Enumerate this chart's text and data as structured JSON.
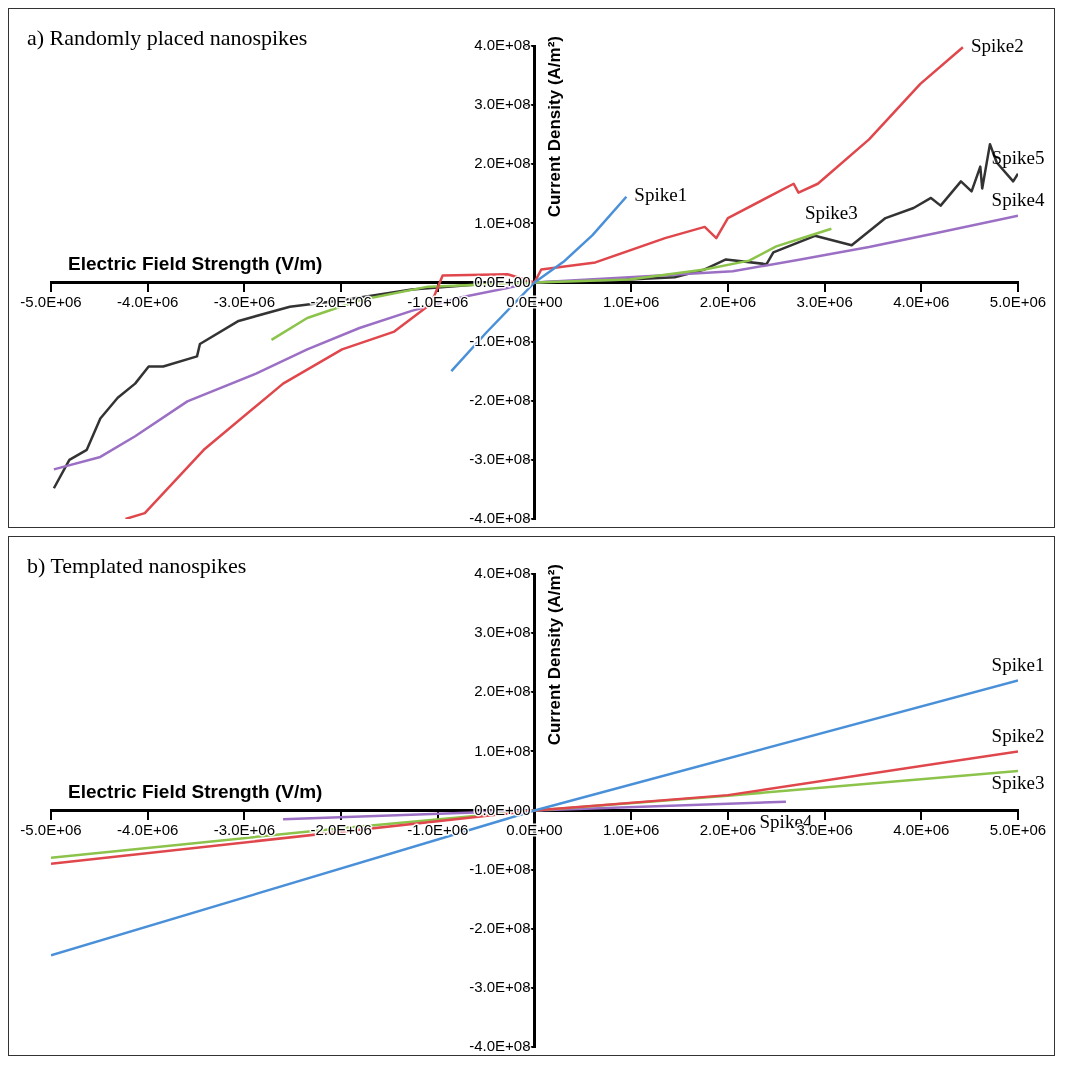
{
  "chart_data": [
    {
      "type": "line",
      "title": "a) Randomly placed nanospikes",
      "xlabel": "Electric Field Strength (V/m)",
      "ylabel": "Current Density (A/m²)",
      "xlim": [
        -5000000,
        5000000
      ],
      "ylim": [
        -400000000,
        400000000
      ],
      "xticks": [
        {
          "value": -5000000,
          "label": "-5.0E+06"
        },
        {
          "value": -4000000,
          "label": "-4.0E+06"
        },
        {
          "value": -3000000,
          "label": "-3.0E+06"
        },
        {
          "value": -2000000,
          "label": "-2.0E+06"
        },
        {
          "value": -1000000,
          "label": "-1.0E+06"
        },
        {
          "value": 0,
          "label": "0.0E+00"
        },
        {
          "value": 1000000,
          "label": "1.0E+06"
        },
        {
          "value": 2000000,
          "label": "2.0E+06"
        },
        {
          "value": 3000000,
          "label": "3.0E+06"
        },
        {
          "value": 4000000,
          "label": "4.0E+06"
        },
        {
          "value": 5000000,
          "label": "5.0E+06"
        }
      ],
      "yticks": [
        {
          "value": -400000000,
          "label": "-4.0E+08"
        },
        {
          "value": -300000000,
          "label": "-3.0E+08"
        },
        {
          "value": -200000000,
          "label": "-2.0E+08"
        },
        {
          "value": -100000000,
          "label": "-1.0E+08"
        },
        {
          "value": 0,
          "label": "0.0E+00"
        },
        {
          "value": 100000000,
          "label": "1.0E+08"
        },
        {
          "value": 200000000,
          "label": "2.0E+08"
        },
        {
          "value": 300000000,
          "label": "3.0E+08"
        },
        {
          "value": 400000000,
          "label": "4.0E+08"
        }
      ],
      "series": [
        {
          "name": "Spike1",
          "color": "#4a90d9",
          "x": [
            -860000,
            -500000,
            0,
            300000,
            600000,
            950000
          ],
          "values": [
            -150000000,
            -85000000,
            0,
            35000000,
            80000000,
            145000000
          ]
        },
        {
          "name": "Spike2",
          "color": "#e0474c",
          "x": [
            -4230000,
            -4030000,
            -3420000,
            -2600000,
            -1990000,
            -1450000,
            -1070000,
            -950000,
            -280000,
            0,
            70000,
            630000,
            1350000,
            1760000,
            1880000,
            2000000,
            2680000,
            2730000,
            2930000,
            3460000,
            3990000,
            4430000
          ],
          "values": [
            -400000000,
            -390000000,
            -283000000,
            -171000000,
            -113000000,
            -83000000,
            -36000000,
            12000000,
            14000000,
            0,
            22000000,
            34000000,
            75000000,
            94000000,
            75000000,
            109000000,
            167000000,
            152000000,
            167000000,
            242000000,
            336000000,
            398000000
          ]
        },
        {
          "name": "Spike3",
          "color": "#8cc34a",
          "x": [
            -2720000,
            -2350000,
            -1810000,
            -1100000,
            0,
            980000,
            1760000,
            2220000,
            2500000,
            2860000,
            3070000
          ],
          "values": [
            -97000000,
            -60000000,
            -30000000,
            -7000000,
            0,
            5000000,
            22000000,
            37000000,
            61000000,
            80000000,
            91000000
          ]
        },
        {
          "name": "Spike4",
          "color": "#9b6fc4",
          "x": [
            -4970000,
            -4490000,
            -4130000,
            -3590000,
            -2880000,
            -2350000,
            -1810000,
            -1270000,
            -730000,
            0,
            980000,
            2050000,
            2750000,
            3460000,
            4170000,
            5000000
          ],
          "values": [
            -316000000,
            -295000000,
            -260000000,
            -201000000,
            -154000000,
            -113000000,
            -77000000,
            -48000000,
            -24000000,
            0,
            9000000,
            19000000,
            39000000,
            60000000,
            84000000,
            113000000
          ]
        },
        {
          "name": "Spike5",
          "color": "#333333",
          "x": [
            -4970000,
            -4810000,
            -4630000,
            -4490000,
            -4310000,
            -4130000,
            -3990000,
            -3840000,
            -3490000,
            -3460000,
            -3060000,
            -2530000,
            -1990000,
            -1270000,
            -560000,
            0,
            980000,
            1450000,
            1760000,
            1980000,
            2400000,
            2470000,
            2900000,
            3280000,
            3630000,
            3920000,
            4100000,
            4200000,
            4410000,
            4520000,
            4610000,
            4630000,
            4710000,
            4780000,
            4950000,
            5000000
          ],
          "values": [
            -348000000,
            -300000000,
            -283000000,
            -230000000,
            -195000000,
            -171000000,
            -142000000,
            -142000000,
            -125000000,
            -104000000,
            -65000000,
            -41000000,
            -30000000,
            -12000000,
            -3000000,
            0,
            5000000,
            9000000,
            22000000,
            39000000,
            31000000,
            51000000,
            79000000,
            63000000,
            109000000,
            126000000,
            143000000,
            130000000,
            171000000,
            154000000,
            196000000,
            159000000,
            234000000,
            203000000,
            171000000,
            184000000
          ]
        }
      ]
    },
    {
      "type": "line",
      "title": "b) Templated nanospikes",
      "xlabel": "Electric Field Strength (V/m)",
      "ylabel": "Current Density (A/m²)",
      "xlim": [
        -5000000,
        5000000
      ],
      "ylim": [
        -400000000,
        400000000
      ],
      "xticks": [
        {
          "value": -5000000,
          "label": "-5.0E+06"
        },
        {
          "value": -4000000,
          "label": "-4.0E+06"
        },
        {
          "value": -3000000,
          "label": "-3.0E+06"
        },
        {
          "value": -2000000,
          "label": "-2.0E+06"
        },
        {
          "value": -1000000,
          "label": "-1.0E+06"
        },
        {
          "value": 0,
          "label": "0.0E+00"
        },
        {
          "value": 1000000,
          "label": "1.0E+06"
        },
        {
          "value": 2000000,
          "label": "2.0E+06"
        },
        {
          "value": 3000000,
          "label": "3.0E+06"
        },
        {
          "value": 4000000,
          "label": "4.0E+06"
        },
        {
          "value": 5000000,
          "label": "5.0E+06"
        }
      ],
      "yticks": [
        {
          "value": -400000000,
          "label": "-4.0E+08"
        },
        {
          "value": -300000000,
          "label": "-3.0E+08"
        },
        {
          "value": -200000000,
          "label": "-2.0E+08"
        },
        {
          "value": -100000000,
          "label": "-1.0E+08"
        },
        {
          "value": 0,
          "label": "0.0E+00"
        },
        {
          "value": 100000000,
          "label": "1.0E+08"
        },
        {
          "value": 200000000,
          "label": "2.0E+08"
        },
        {
          "value": 300000000,
          "label": "3.0E+08"
        },
        {
          "value": 400000000,
          "label": "4.0E+08"
        }
      ],
      "series": [
        {
          "name": "Spike1",
          "color": "#4a90d9",
          "x": [
            -5000000,
            0,
            5000000
          ],
          "values": [
            -245000000,
            0,
            220000000
          ]
        },
        {
          "name": "Spike2",
          "color": "#e0474c",
          "x": [
            -5000000,
            0,
            2000000,
            5000000
          ],
          "values": [
            -90000000,
            0,
            26000000,
            100000000
          ]
        },
        {
          "name": "Spike3",
          "color": "#8cc34a",
          "x": [
            -5000000,
            -2000000,
            0,
            2000000,
            5000000
          ],
          "values": [
            -80000000,
            -30000000,
            0,
            25000000,
            67000000
          ]
        },
        {
          "name": "Spike4",
          "color": "#9b6fc4",
          "x": [
            -2600000,
            0,
            2600000
          ],
          "values": [
            -15000000,
            0,
            15000000
          ]
        }
      ]
    }
  ]
}
